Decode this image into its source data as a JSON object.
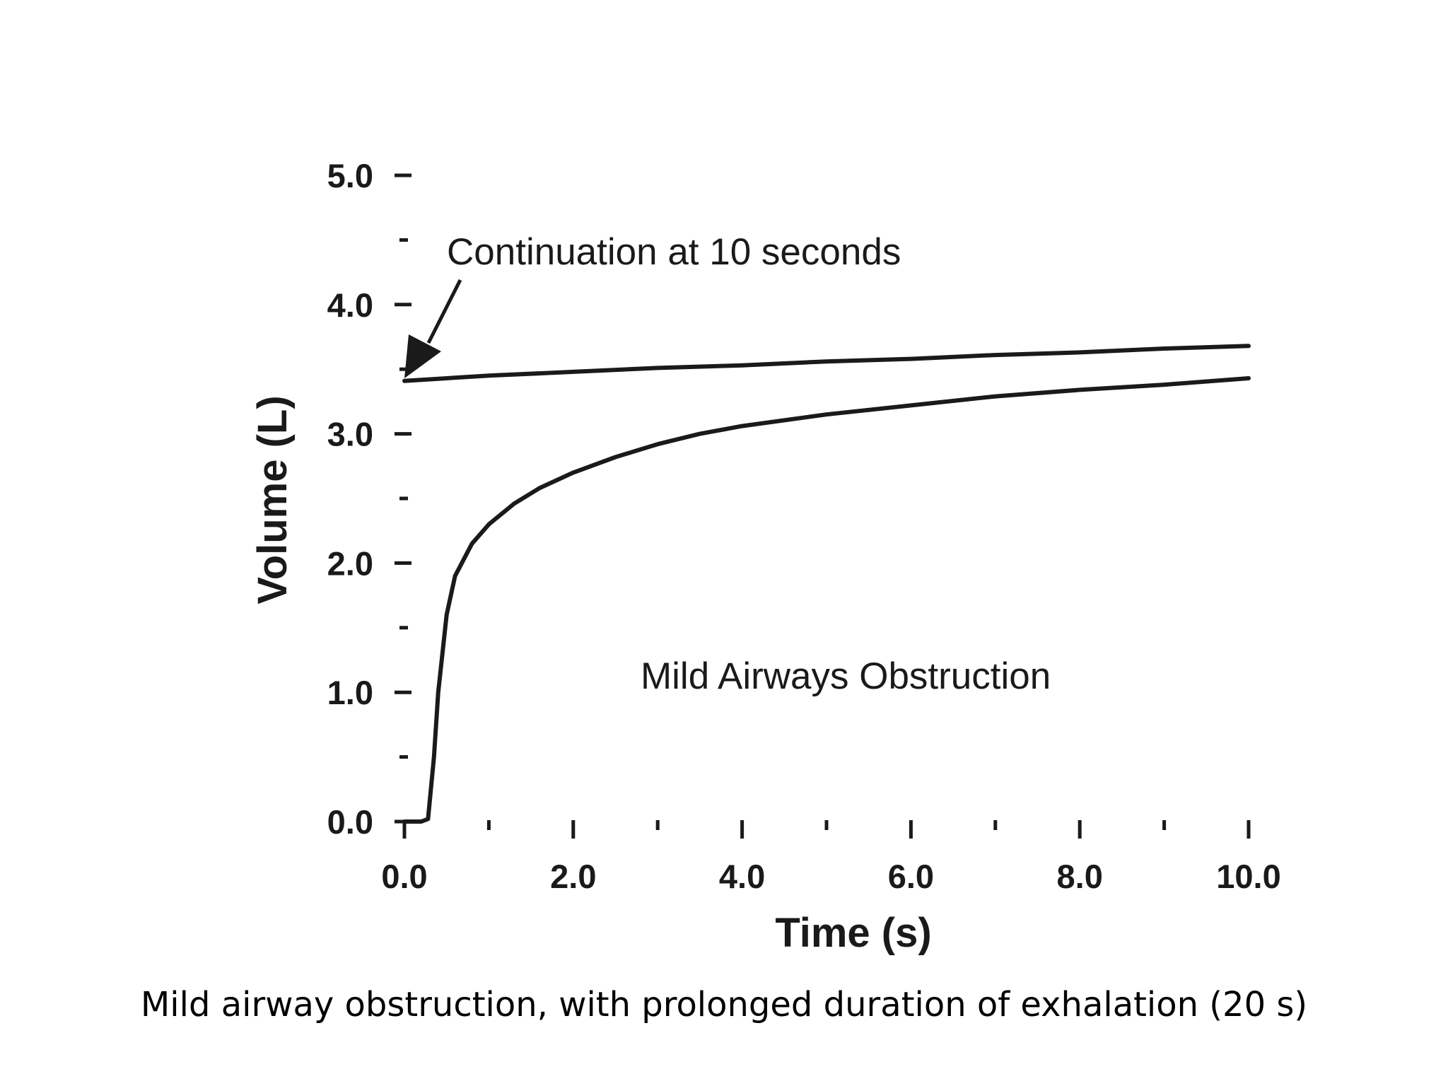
{
  "chart_data": {
    "type": "line",
    "xlabel": "Time (s)",
    "ylabel": "Volume (L)",
    "xlim": [
      0,
      10
    ],
    "ylim": [
      0,
      5
    ],
    "x_ticks": [
      0,
      2,
      4,
      6,
      8,
      10
    ],
    "x_tick_labels": [
      "0.0",
      "2.0",
      "4.0",
      "6.0",
      "8.0",
      "10.0"
    ],
    "x_minor_ticks": [
      1,
      3,
      5,
      7,
      9
    ],
    "y_ticks": [
      0,
      1,
      2,
      3,
      4,
      5
    ],
    "y_tick_labels": [
      "0.0",
      "1.0",
      "2.0",
      "3.0",
      "4.0",
      "5.0"
    ],
    "y_minor_ticks": [
      0.5,
      1.5,
      2.5,
      3.5,
      4.5
    ],
    "grid": false,
    "series": [
      {
        "points": [
          [
            0,
            0
          ],
          [
            0.2,
            0
          ],
          [
            0.28,
            0.02
          ],
          [
            0.35,
            0.5
          ],
          [
            0.4,
            1.0
          ],
          [
            0.5,
            1.6
          ],
          [
            0.6,
            1.9
          ],
          [
            0.8,
            2.15
          ],
          [
            1.0,
            2.3
          ],
          [
            1.3,
            2.46
          ],
          [
            1.6,
            2.58
          ],
          [
            2.0,
            2.7
          ],
          [
            2.5,
            2.82
          ],
          [
            3.0,
            2.92
          ],
          [
            3.5,
            3.0
          ],
          [
            4.0,
            3.06
          ],
          [
            5.0,
            3.15
          ],
          [
            6.0,
            3.22
          ],
          [
            7.0,
            3.29
          ],
          [
            8.0,
            3.34
          ],
          [
            9.0,
            3.38
          ],
          [
            10.0,
            3.43
          ]
        ]
      },
      {
        "points": [
          [
            0,
            3.41
          ],
          [
            1,
            3.45
          ],
          [
            2,
            3.48
          ],
          [
            3,
            3.51
          ],
          [
            4,
            3.53
          ],
          [
            5,
            3.56
          ],
          [
            6,
            3.58
          ],
          [
            7,
            3.61
          ],
          [
            8,
            3.63
          ],
          [
            9,
            3.66
          ],
          [
            10,
            3.68
          ]
        ]
      }
    ],
    "annotations": [
      {
        "text": "Continuation at 10 seconds",
        "arrow_to": [
          0,
          3.43
        ]
      },
      {
        "text": "Mild Airways Obstruction"
      }
    ]
  },
  "caption": "Mild airway obstruction, with prolonged duration of exhalation (20 s)"
}
